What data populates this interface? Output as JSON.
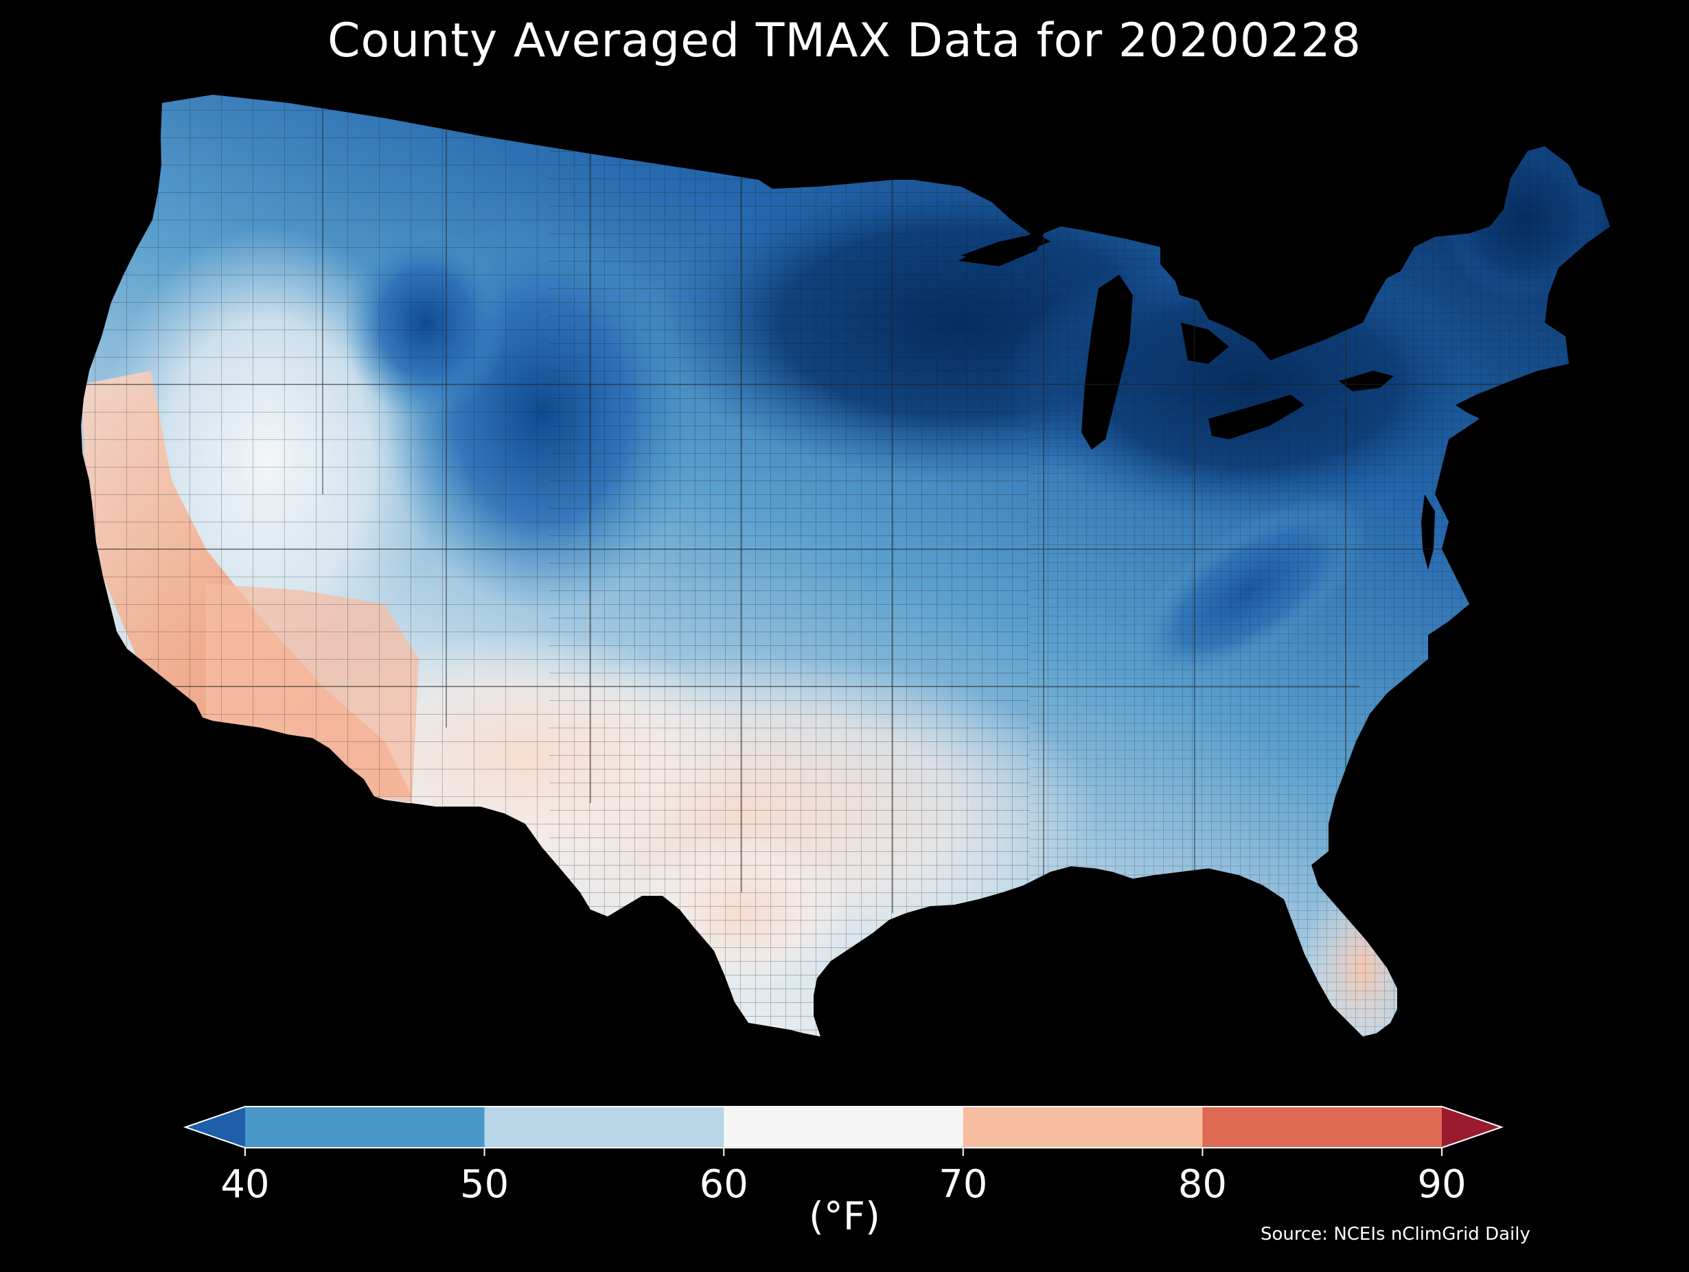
{
  "title": "County Averaged TMAX Data for 20200228",
  "source": "Source: NCEIs nClimGrid Daily",
  "colorbar": {
    "unit_label": "(°F)",
    "ticks": [
      "40",
      "50",
      "60",
      "70",
      "80",
      "90"
    ],
    "bins": [
      {
        "range": "<40",
        "color": "#1f5ea8"
      },
      {
        "range": "40-50",
        "color": "#4a98c9"
      },
      {
        "range": "50-60",
        "color": "#b7d7e8"
      },
      {
        "range": "60-70",
        "color": "#f5f5f5"
      },
      {
        "range": "70-80",
        "color": "#f7bda0"
      },
      {
        "range": "80-90",
        "color": "#de6a54"
      },
      {
        "range": ">90",
        "color": "#9a1b2e"
      }
    ]
  },
  "colors": {
    "background": "#000000",
    "county_border": "#333333",
    "deep_blue": "#0a3368",
    "blue": "#2b6fb6",
    "mid_blue": "#4a98c9",
    "light_blue": "#b7d7e8",
    "near_white": "#eef2f5",
    "light_orange": "#f7d4c0",
    "orange": "#f2a483"
  }
}
